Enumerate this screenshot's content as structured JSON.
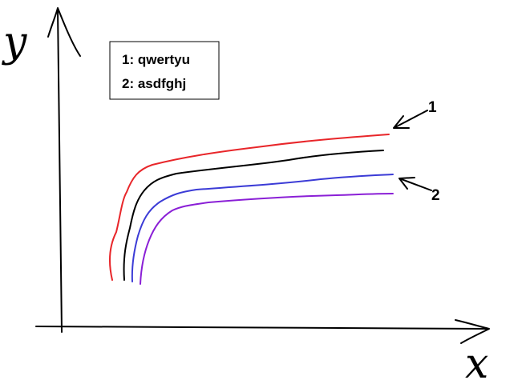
{
  "axes": {
    "y_label": "y",
    "x_label": "x"
  },
  "legend": [
    "1: qwertyu",
    "2: asdfghj"
  ],
  "annotations": [
    "1",
    "2"
  ]
}
